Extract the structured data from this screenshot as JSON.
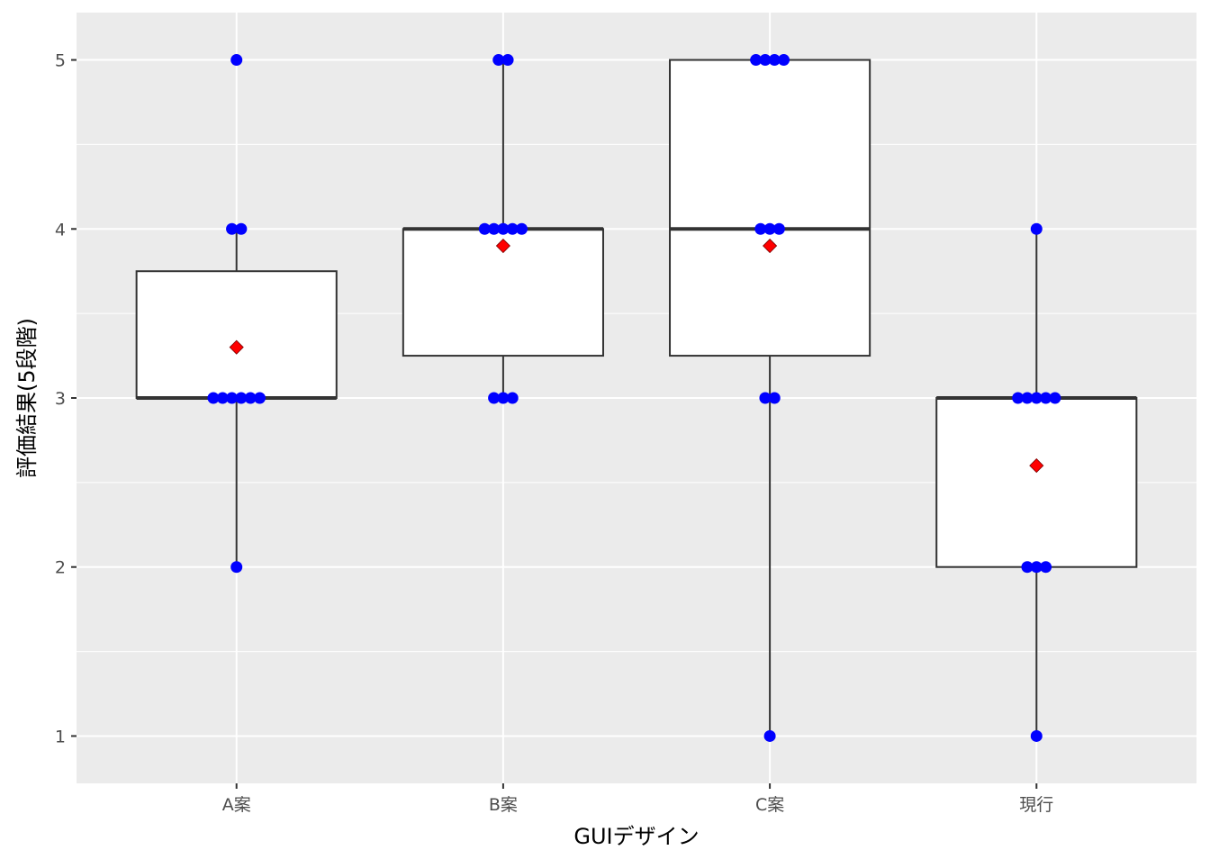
{
  "chart_data": {
    "type": "box",
    "xlabel": "GUIデザイン",
    "ylabel": "評価結果(5段階)",
    "categories": [
      "A案",
      "B案",
      "C案",
      "現行"
    ],
    "ylim": [
      0.72,
      5.28
    ],
    "y_ticks": [
      1,
      2,
      3,
      4,
      5
    ],
    "y_tick_labels": [
      "1",
      "2",
      "3",
      "4",
      "5"
    ],
    "grid": true,
    "legend": "none",
    "boxes": [
      {
        "category": "A案",
        "min": 2,
        "q1": 3,
        "median": 3,
        "q3": 3.75,
        "max": 4,
        "mean": 3.3,
        "points": [
          5,
          4,
          4,
          3,
          3,
          3,
          3,
          3,
          3,
          2
        ]
      },
      {
        "category": "B案",
        "min": 3,
        "q1": 3.25,
        "median": 4,
        "q3": 4,
        "max": 5,
        "mean": 3.9,
        "points": [
          5,
          5,
          4,
          4,
          4,
          4,
          4,
          3,
          3,
          3
        ]
      },
      {
        "category": "C案",
        "min": 1,
        "q1": 3.25,
        "median": 4,
        "q3": 5,
        "max": 5,
        "mean": 3.9,
        "points": [
          5,
          5,
          5,
          5,
          4,
          4,
          4,
          3,
          3,
          1
        ]
      },
      {
        "category": "現行",
        "min": 1,
        "q1": 2,
        "median": 3,
        "q3": 3,
        "max": 4,
        "mean": 2.6,
        "points": [
          4,
          3,
          3,
          3,
          3,
          3,
          2,
          2,
          2,
          1
        ]
      }
    ],
    "colors": {
      "panel": "#EBEBEB",
      "grid": "#FFFFFF",
      "box_fill": "#FFFFFF",
      "box_line": "#333333",
      "point": "#0000FF",
      "mean_marker": "#FF0000",
      "tick_text": "#4D4D4D",
      "axis_title": "#000000"
    }
  }
}
